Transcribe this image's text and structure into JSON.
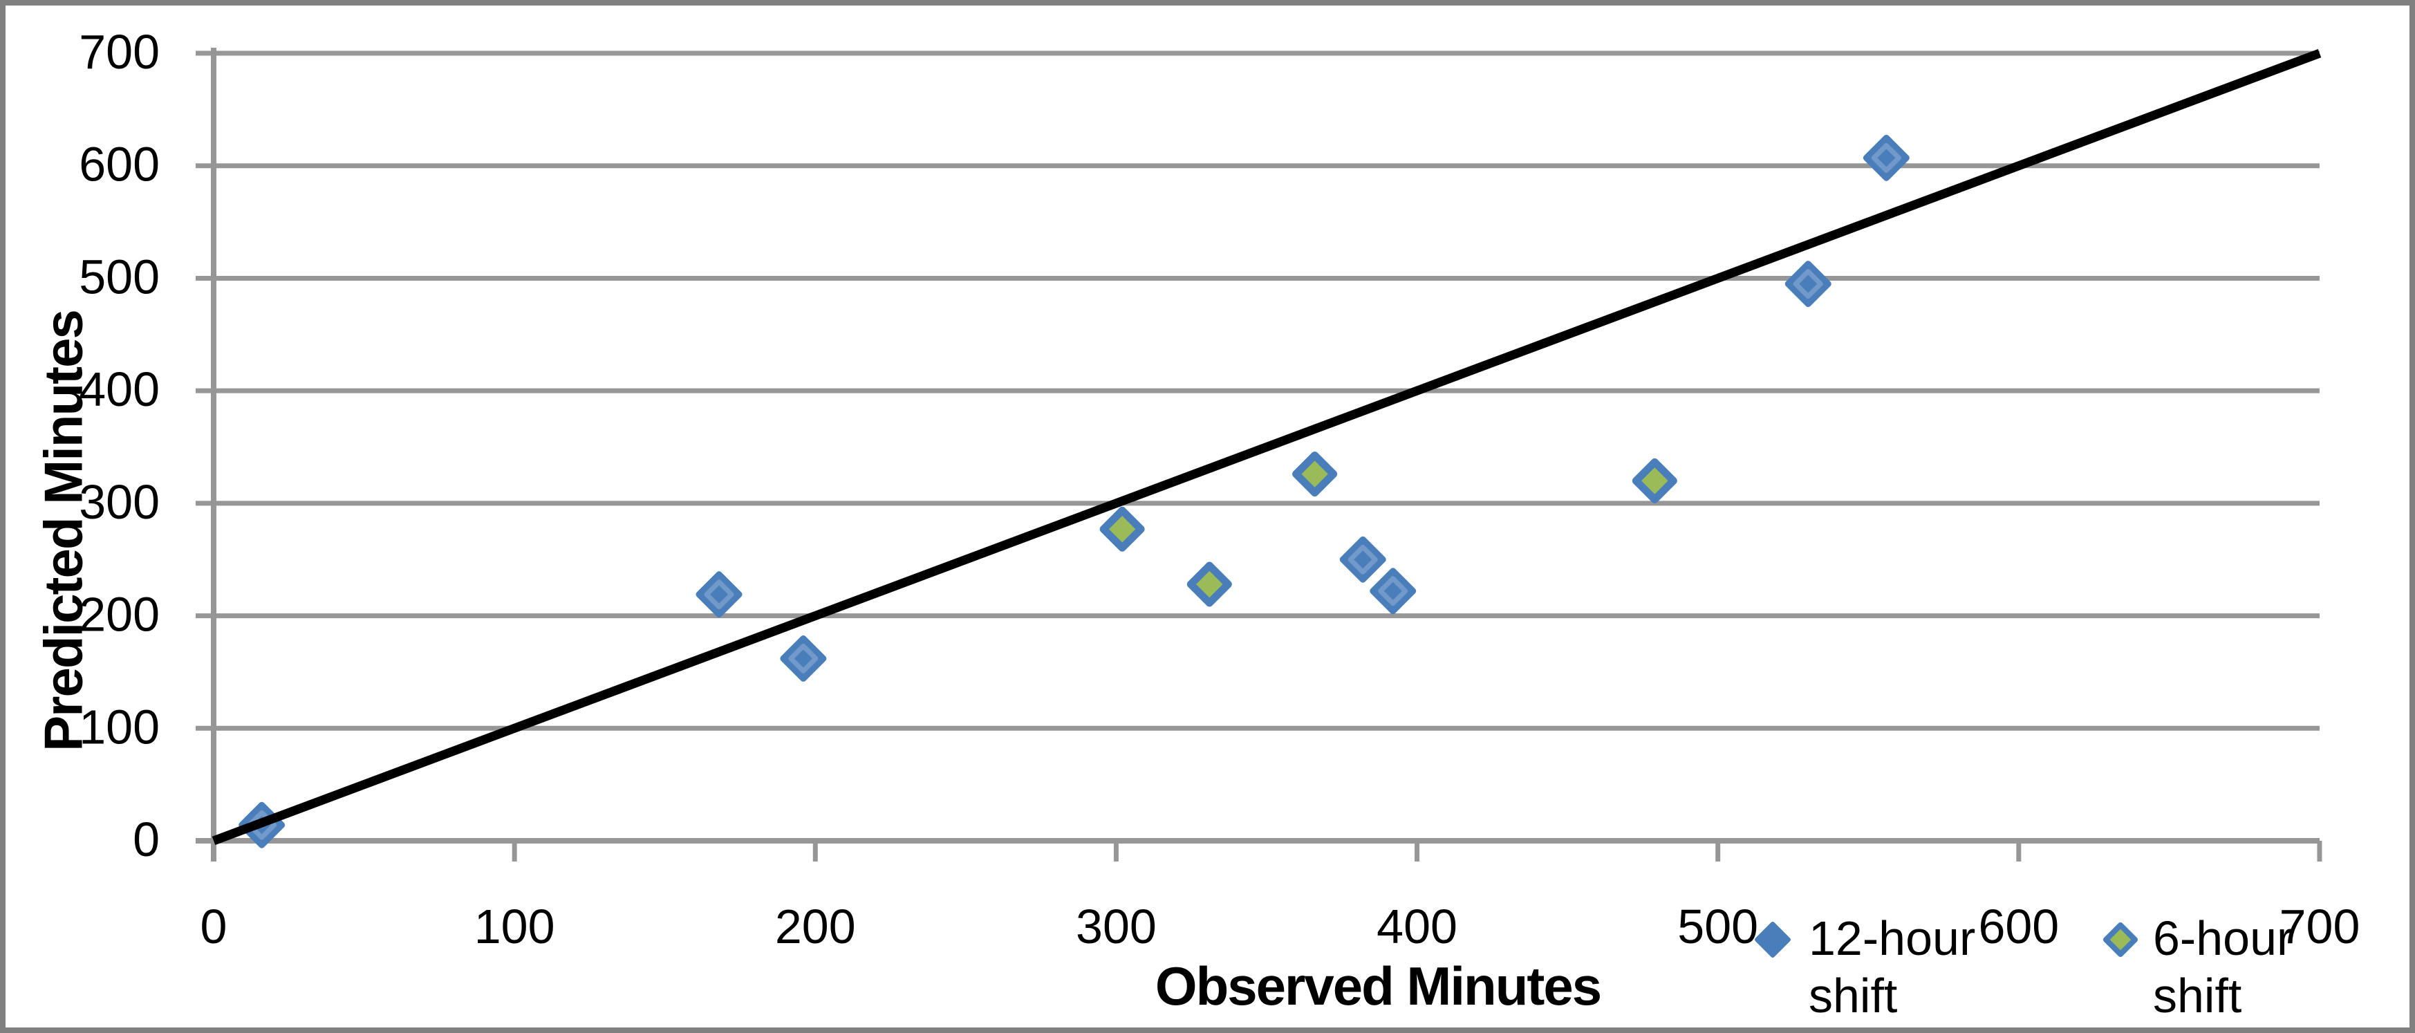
{
  "chart_data": {
    "type": "scatter",
    "title": "",
    "xlabel": "Observed Minutes",
    "ylabel": "Predicted Minutes",
    "xlim": [
      0,
      700
    ],
    "ylim": [
      0,
      700
    ],
    "x_tick_labels": [
      "0",
      "100",
      "200",
      "300",
      "400",
      "500",
      "600",
      "700"
    ],
    "y_tick_labels": [
      "0",
      "100",
      "200",
      "300",
      "400",
      "500",
      "600",
      "700"
    ],
    "grid": "horizontal-gridlines-only",
    "legend_position": "bottom-right, inline with x-axis tick labels",
    "series": [
      {
        "name": "12-hour shift",
        "marker": "diamond",
        "fill": "#4A7EBB",
        "stroke": "#4A7EBB",
        "points": [
          [
            16,
            14
          ],
          [
            168,
            219
          ],
          [
            196,
            162
          ],
          [
            382,
            250
          ],
          [
            392,
            222
          ],
          [
            530,
            495
          ],
          [
            556,
            607
          ]
        ]
      },
      {
        "name": "6-hour shift",
        "marker": "diamond",
        "fill": "#9BBB59",
        "stroke": "#4A7EBB",
        "points": [
          [
            302,
            277
          ],
          [
            331,
            228
          ],
          [
            366,
            326
          ],
          [
            479,
            320
          ]
        ]
      }
    ],
    "identity_line": {
      "from": [
        0,
        0
      ],
      "to": [
        700,
        700
      ],
      "color": "#000000"
    }
  },
  "colors": {
    "grid": "#969696",
    "axis": "#969696",
    "tick": "#969696",
    "text": "#000000",
    "background": "#FFFFFF",
    "frame_border": "#808080",
    "marker_highlight": "rgba(255,255,255,0.22)"
  }
}
